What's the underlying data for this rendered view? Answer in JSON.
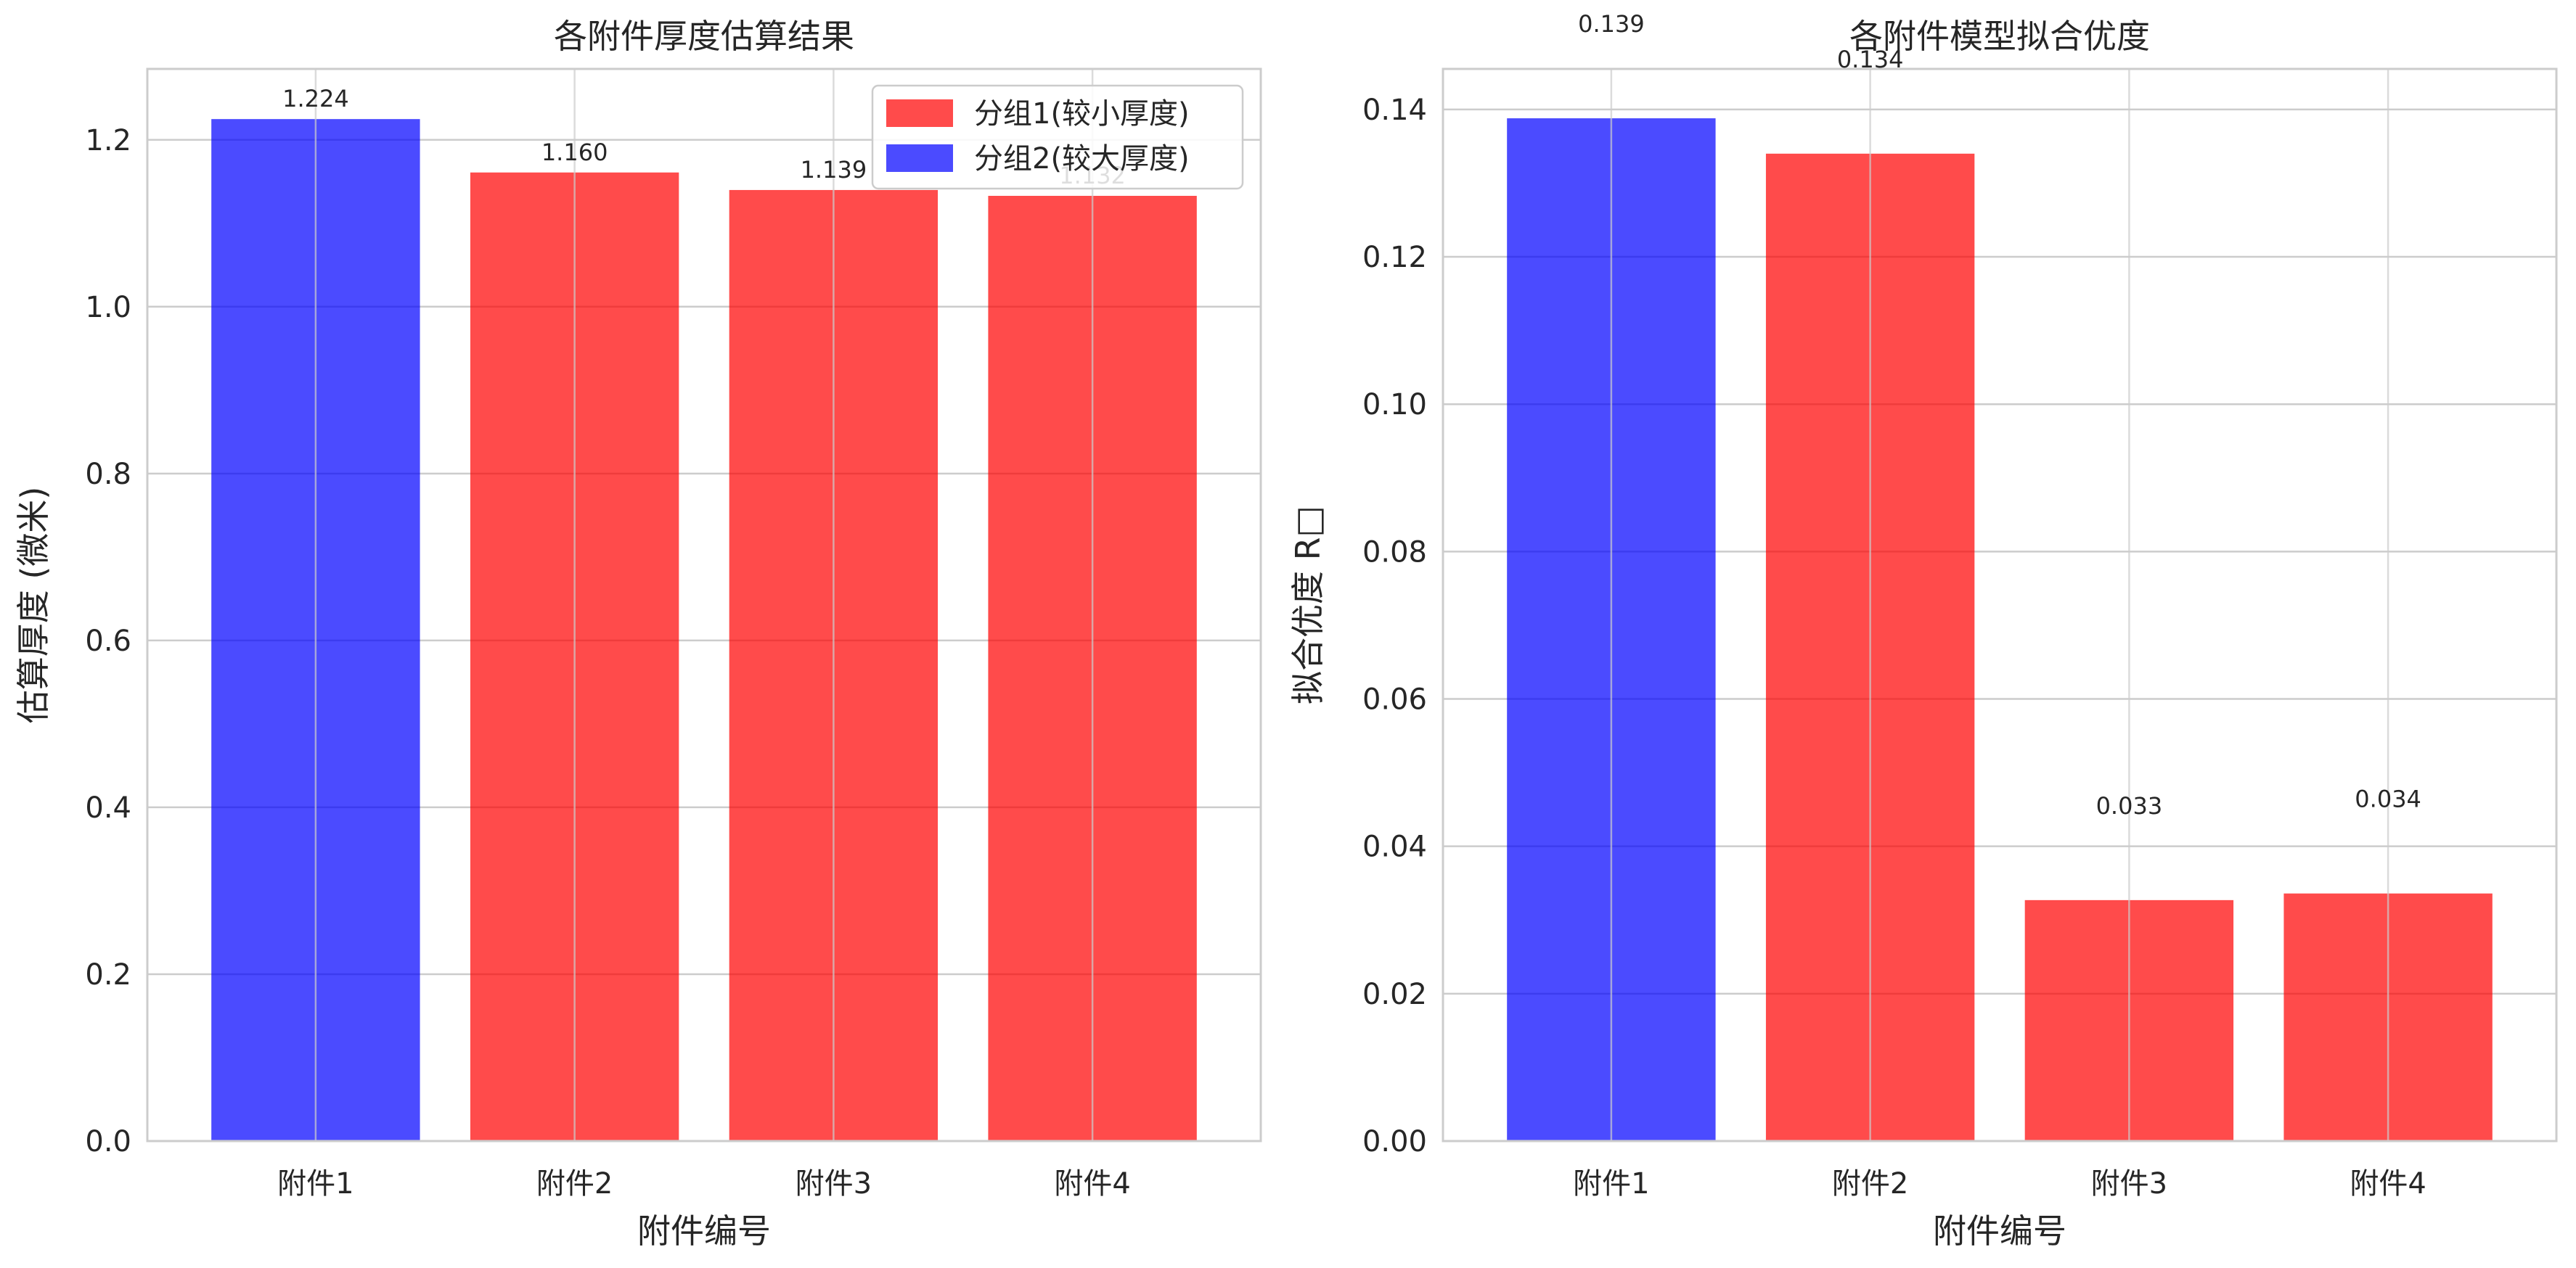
{
  "colors": {
    "group1": "#ff0000",
    "group2": "#0000ff"
  },
  "chart_data": [
    {
      "type": "bar",
      "title": "各附件厚度估算结果",
      "xlabel": "附件编号",
      "ylabel": "估算厚度 (微米)",
      "categories": [
        "附件1",
        "附件2",
        "附件3",
        "附件4"
      ],
      "values": [
        1.224,
        1.16,
        1.139,
        1.132
      ],
      "value_labels": [
        "1.224",
        "1.160",
        "1.139",
        "1.132"
      ],
      "groups": [
        "group2",
        "group1",
        "group1",
        "group1"
      ],
      "ylim": [
        0,
        1.285
      ],
      "yticks": [
        0.0,
        0.2,
        0.4,
        0.6,
        0.8,
        1.0,
        1.2
      ],
      "ytick_labels": [
        "0.0",
        "0.2",
        "0.4",
        "0.6",
        "0.8",
        "1.0",
        "1.2"
      ],
      "grid": true,
      "legend": {
        "placement": "upper-right",
        "entries": [
          {
            "label": "分组1(较小厚度)",
            "group": "group1"
          },
          {
            "label": "分组2(较大厚度)",
            "group": "group2"
          }
        ]
      }
    },
    {
      "type": "bar",
      "title": "各附件模型拟合优度",
      "xlabel": "附件编号",
      "ylabel": "拟合优度 R□",
      "categories": [
        "附件1",
        "附件2",
        "附件3",
        "附件4"
      ],
      "values": [
        0.1387,
        0.1339,
        0.0326,
        0.0335
      ],
      "value_labels": [
        "0.139",
        "0.134",
        "0.033",
        "0.034"
      ],
      "groups": [
        "group2",
        "group1",
        "group1",
        "group1"
      ],
      "ylim": [
        0,
        0.1455
      ],
      "yticks": [
        0.0,
        0.02,
        0.04,
        0.06,
        0.08,
        0.1,
        0.12,
        0.14
      ],
      "ytick_labels": [
        "0.00",
        "0.02",
        "0.04",
        "0.06",
        "0.08",
        "0.10",
        "0.12",
        "0.14"
      ],
      "grid": true
    }
  ]
}
